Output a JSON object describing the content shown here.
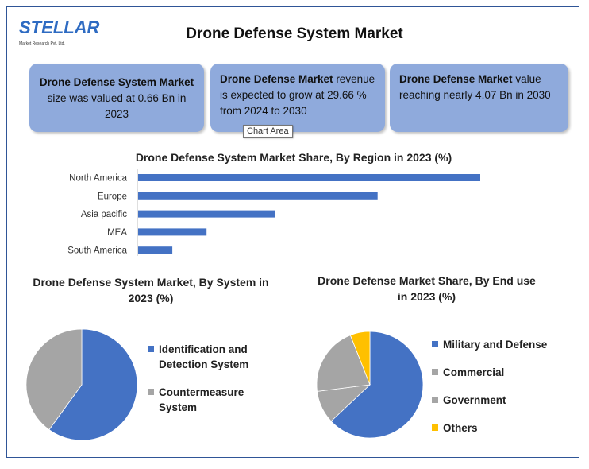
{
  "logo": {
    "name": "STELLAR",
    "sub": "Market Research Pvt. Ltd."
  },
  "title": "Drone Defense System Market",
  "cards": [
    {
      "bold": "Drone Defense System Market",
      "text": " size was valued at 0.66 Bn in 2023"
    },
    {
      "bold": "Drone Defense Market",
      "text": " revenue is expected to grow at 29.66 % from 2024 to 2030"
    },
    {
      "bold": "Drone Defense Market",
      "text": " value reaching nearly 4.07 Bn in 2030"
    }
  ],
  "tooltip": "Chart Area",
  "colors": {
    "blue": "#4472c4",
    "gray": "#a5a5a5",
    "gray_dark": "#999999",
    "yellow": "#ffc000",
    "card": "#8faadc"
  },
  "chart_data": [
    {
      "type": "bar",
      "orientation": "horizontal",
      "title": "Drone Defense System Market Share, By Region in 2023 (%)",
      "categories": [
        "North America",
        "Europe",
        "Asia pacific",
        "MEA",
        "South America"
      ],
      "values": [
        100,
        70,
        40,
        20,
        10
      ],
      "xlim": [
        0,
        100
      ],
      "xlabel": "",
      "ylabel": "",
      "grid": false
    },
    {
      "type": "pie",
      "title": "Drone Defense System Market, By System in 2023 (%)",
      "categories": [
        "Identification and Detection System",
        "Countermeasure System"
      ],
      "values": [
        60,
        40
      ],
      "colors": [
        "#4472c4",
        "#a5a5a5"
      ],
      "legend": "right"
    },
    {
      "type": "pie",
      "title": "Drone Defense Market Share, By End use in 2023 (%)",
      "categories": [
        "Military and Defense",
        "Commercial",
        "Government",
        "Others"
      ],
      "values": [
        63,
        10,
        21,
        6
      ],
      "colors": [
        "#4472c4",
        "#a5a5a5",
        "#a5a5a5",
        "#ffc000"
      ],
      "legend": "right"
    }
  ]
}
